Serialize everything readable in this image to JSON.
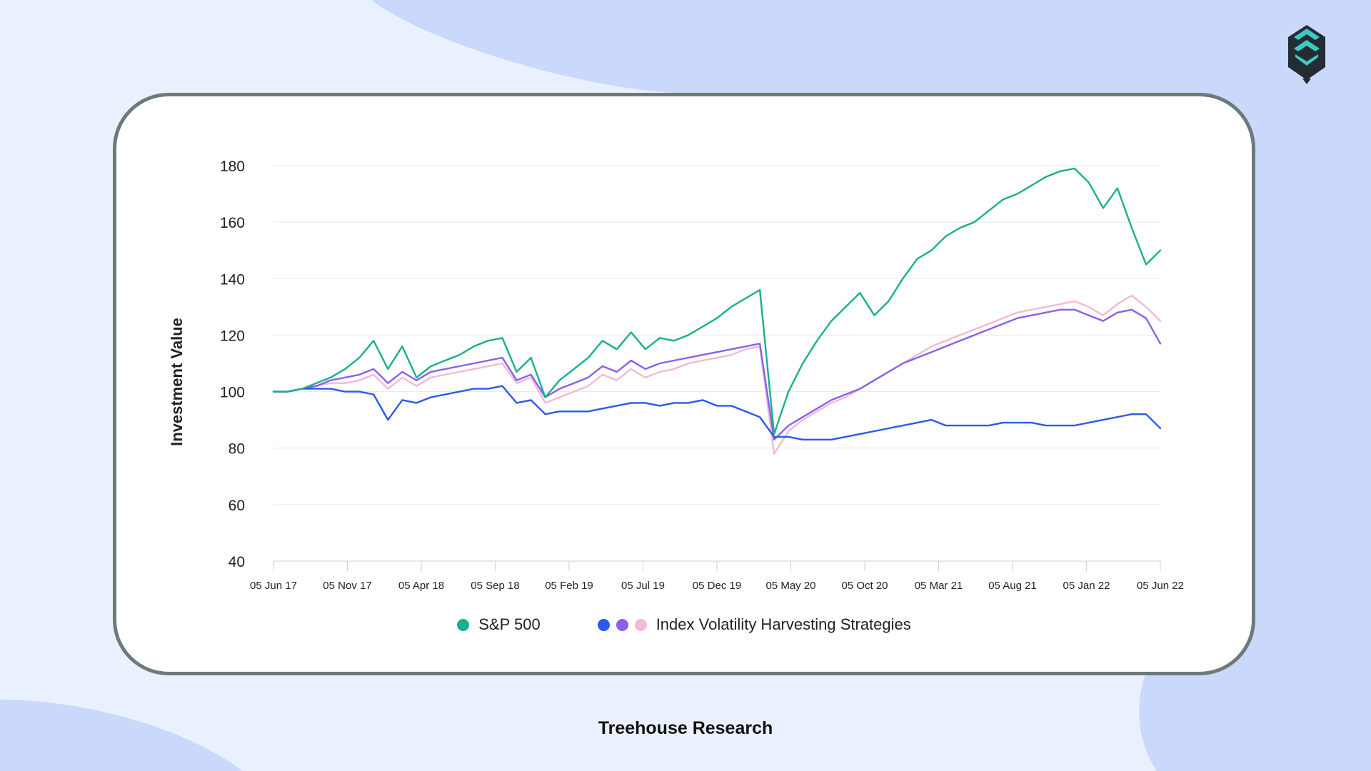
{
  "caption": "Treehouse Research",
  "legend": {
    "sp500_label": "S&P 500",
    "ivhs_label": "Index Volatility Harvesting Strategies"
  },
  "colors": {
    "background": "#eaf1fe",
    "blob": "#c9d8fb",
    "sp500": "#1aae8c",
    "strategy_blue": "#2b59e8",
    "strategy_purple": "#8761ec",
    "strategy_pink": "#f2b9da",
    "logo_dark": "#232b33",
    "logo_teal": "#3ec9c1"
  },
  "logo": {
    "icon": "treehouse-logo-icon"
  },
  "chart_data": {
    "type": "line",
    "title": "",
    "xlabel": "",
    "ylabel": "Investment Value",
    "ylim": [
      40,
      180
    ],
    "yticks": [
      180,
      160,
      140,
      120,
      100,
      80,
      60,
      40
    ],
    "xticks": [
      "05 Jun 17",
      "05 Nov 17",
      "05 Apr 18",
      "05 Sep 18",
      "05 Feb 19",
      "05 Jul 19",
      "05 Dec 19",
      "05 May 20",
      "05 Oct 20",
      "05 Mar 21",
      "05 Aug 21",
      "05 Jan 22",
      "05 Jun 22"
    ],
    "grid": "horizontal",
    "legend_position": "bottom",
    "series": [
      {
        "name": "S&P 500",
        "color": "#1aae8c",
        "values": [
          100,
          100,
          101,
          103,
          105,
          108,
          112,
          118,
          108,
          116,
          105,
          109,
          111,
          113,
          116,
          118,
          119,
          107,
          112,
          98,
          104,
          108,
          112,
          118,
          115,
          121,
          115,
          119,
          118,
          120,
          123,
          126,
          130,
          133,
          136,
          85,
          100,
          110,
          118,
          125,
          130,
          135,
          127,
          132,
          140,
          147,
          150,
          155,
          158,
          160,
          164,
          168,
          170,
          173,
          176,
          178,
          179,
          174,
          165,
          172,
          158,
          145,
          150
        ]
      },
      {
        "name": "",
        "color": "#2b59e8",
        "values": [
          100,
          100,
          101,
          101,
          101,
          100,
          100,
          99,
          90,
          97,
          96,
          98,
          99,
          100,
          101,
          101,
          102,
          96,
          97,
          92,
          93,
          93,
          93,
          94,
          95,
          96,
          96,
          95,
          96,
          96,
          97,
          95,
          95,
          93,
          91,
          84,
          84,
          83,
          83,
          83,
          84,
          85,
          86,
          87,
          88,
          89,
          90,
          88,
          88,
          88,
          88,
          89,
          89,
          89,
          88,
          88,
          88,
          89,
          90,
          91,
          92,
          92,
          87
        ]
      },
      {
        "name": "",
        "color": "#8761ec",
        "values": [
          100,
          100,
          101,
          102,
          104,
          105,
          106,
          108,
          103,
          107,
          104,
          107,
          108,
          109,
          110,
          111,
          112,
          104,
          106,
          98,
          101,
          103,
          105,
          109,
          107,
          111,
          108,
          110,
          111,
          112,
          113,
          114,
          115,
          116,
          117,
          83,
          88,
          91,
          94,
          97,
          99,
          101,
          104,
          107,
          110,
          112,
          114,
          116,
          118,
          120,
          122,
          124,
          126,
          127,
          128,
          129,
          129,
          127,
          125,
          128,
          129,
          126,
          117
        ]
      },
      {
        "name": "",
        "color": "#f2b9da",
        "values": [
          100,
          100,
          101,
          102,
          103,
          103,
          104,
          106,
          101,
          105,
          102,
          105,
          106,
          107,
          108,
          109,
          110,
          103,
          105,
          96,
          98,
          100,
          102,
          106,
          104,
          108,
          105,
          107,
          108,
          110,
          111,
          112,
          113,
          115,
          116,
          78,
          86,
          90,
          93,
          96,
          98,
          101,
          104,
          107,
          110,
          113,
          116,
          118,
          120,
          122,
          124,
          126,
          128,
          129,
          130,
          131,
          132,
          130,
          127,
          131,
          134,
          130,
          125
        ]
      }
    ]
  }
}
